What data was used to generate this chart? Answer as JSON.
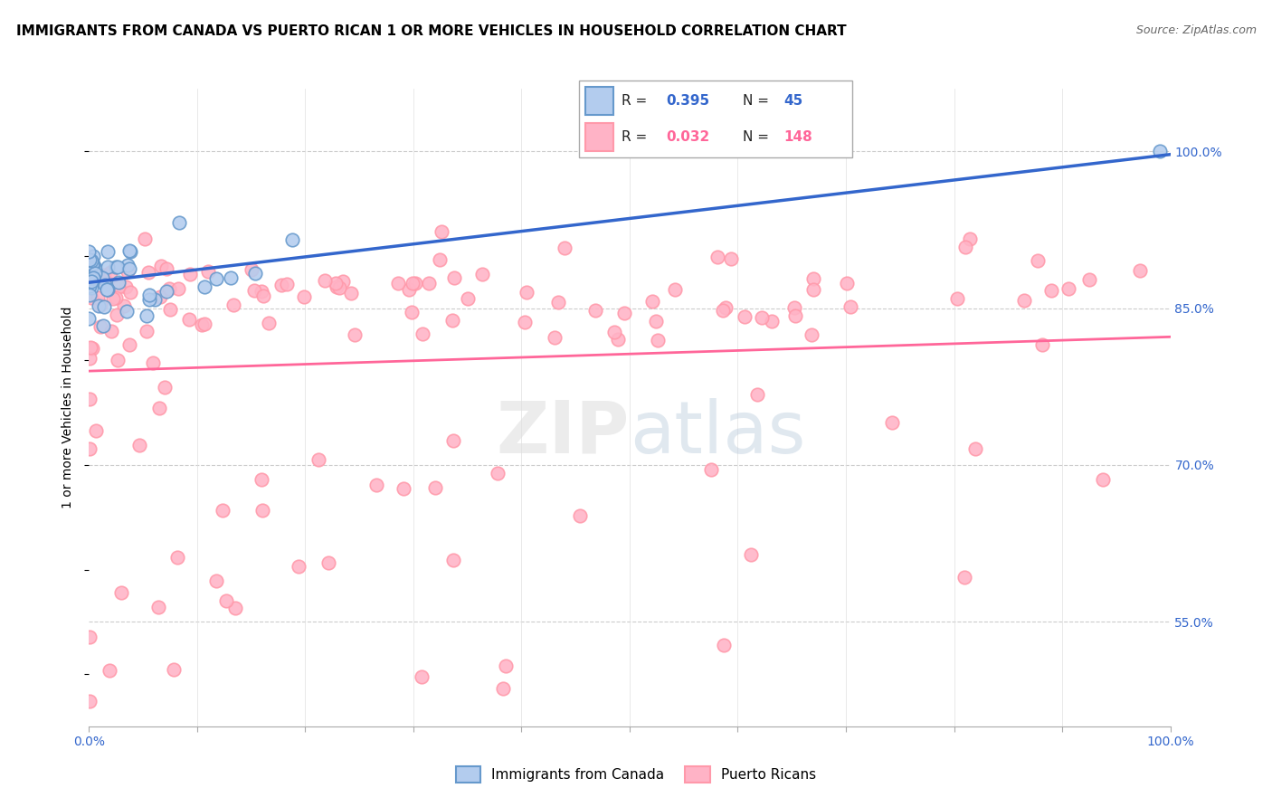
{
  "title": "IMMIGRANTS FROM CANADA VS PUERTO RICAN 1 OR MORE VEHICLES IN HOUSEHOLD CORRELATION CHART",
  "source": "Source: ZipAtlas.com",
  "ylabel": "1 or more Vehicles in Household",
  "legend_canada": "Immigrants from Canada",
  "legend_pr": "Puerto Ricans",
  "r_canada": "0.395",
  "n_canada": "45",
  "r_pr": "0.032",
  "n_pr": "148",
  "blue_fill": "#B3CCEE",
  "blue_edge": "#6699CC",
  "blue_line": "#3366CC",
  "pink_fill": "#FFB3C6",
  "pink_edge": "#FF99AA",
  "pink_line": "#FF6699",
  "watermark_color": "#DDDDDD",
  "grid_color": "#CCCCCC",
  "title_fontsize": 11,
  "source_fontsize": 9,
  "tick_color": "#3366CC"
}
